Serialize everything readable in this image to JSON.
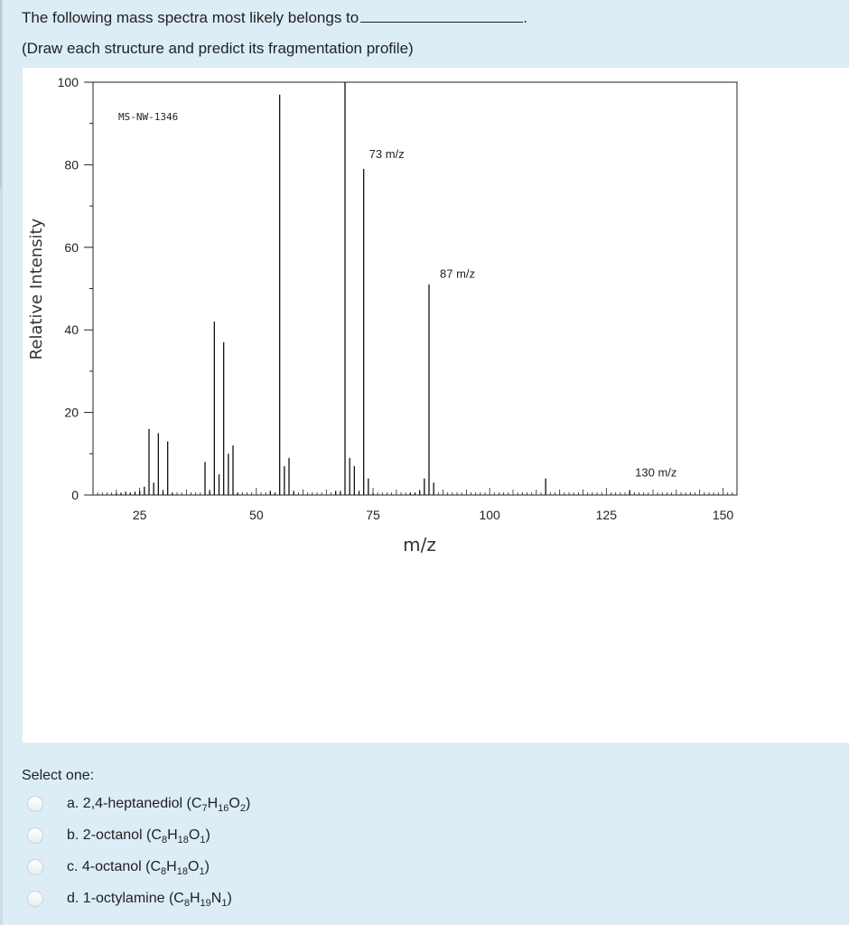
{
  "question": {
    "line1": "The following mass spectra most likely belongs to",
    "line1_end": ".",
    "line2": "(Draw each structure and predict its fragmentation profile)"
  },
  "chart_data": {
    "type": "bar",
    "title": "MS-NW-1346",
    "xlabel": "m/z",
    "ylabel": "Relative Intensity",
    "xlim": [
      15,
      153
    ],
    "ylim": [
      0,
      100
    ],
    "x_ticks": [
      25,
      50,
      75,
      100,
      125,
      150
    ],
    "y_ticks": [
      0,
      20,
      40,
      60,
      80,
      100
    ],
    "annotations": [
      {
        "x": 73,
        "y": 79,
        "label": "73 m/z"
      },
      {
        "x": 87,
        "y": 50,
        "label": "87 m/z"
      },
      {
        "x": 130,
        "y": 1,
        "label": "130 m/z"
      }
    ],
    "peaks": [
      {
        "x": 20,
        "y": 0.5
      },
      {
        "x": 21,
        "y": 0.5
      },
      {
        "x": 22,
        "y": 0.8
      },
      {
        "x": 23,
        "y": 0.5
      },
      {
        "x": 24,
        "y": 0.8
      },
      {
        "x": 25,
        "y": 1.0
      },
      {
        "x": 26,
        "y": 2.0
      },
      {
        "x": 27,
        "y": 16
      },
      {
        "x": 28,
        "y": 3
      },
      {
        "x": 29,
        "y": 15
      },
      {
        "x": 30,
        "y": 1
      },
      {
        "x": 31,
        "y": 13
      },
      {
        "x": 32,
        "y": 0.5
      },
      {
        "x": 39,
        "y": 8
      },
      {
        "x": 40,
        "y": 1
      },
      {
        "x": 41,
        "y": 42
      },
      {
        "x": 42,
        "y": 5
      },
      {
        "x": 43,
        "y": 37
      },
      {
        "x": 44,
        "y": 10
      },
      {
        "x": 45,
        "y": 12
      },
      {
        "x": 46,
        "y": 0.5
      },
      {
        "x": 53,
        "y": 1
      },
      {
        "x": 54,
        "y": 0.5
      },
      {
        "x": 55,
        "y": 97
      },
      {
        "x": 56,
        "y": 7
      },
      {
        "x": 57,
        "y": 9
      },
      {
        "x": 58,
        "y": 1
      },
      {
        "x": 67,
        "y": 1
      },
      {
        "x": 68,
        "y": 1
      },
      {
        "x": 69,
        "y": 100
      },
      {
        "x": 70,
        "y": 9
      },
      {
        "x": 71,
        "y": 7
      },
      {
        "x": 72,
        "y": 1
      },
      {
        "x": 73,
        "y": 79
      },
      {
        "x": 74,
        "y": 4
      },
      {
        "x": 75,
        "y": 0.5
      },
      {
        "x": 83,
        "y": 0.5
      },
      {
        "x": 84,
        "y": 0.5
      },
      {
        "x": 85,
        "y": 1
      },
      {
        "x": 86,
        "y": 4
      },
      {
        "x": 87,
        "y": 51
      },
      {
        "x": 88,
        "y": 3
      },
      {
        "x": 112,
        "y": 4
      },
      {
        "x": 130,
        "y": 1
      }
    ]
  },
  "select": {
    "label": "Select one:",
    "options": [
      {
        "prefix": "a. 2,4-heptanediol (",
        "formula": [
          [
            "C",
            "7"
          ],
          [
            "H",
            "16"
          ],
          [
            "O",
            "2"
          ]
        ],
        "suffix": ")"
      },
      {
        "prefix": "b. 2-octanol (",
        "formula": [
          [
            "C",
            "8"
          ],
          [
            "H",
            "18"
          ],
          [
            "O",
            "1"
          ]
        ],
        "suffix": ")"
      },
      {
        "prefix": "c. 4-octanol (",
        "formula": [
          [
            "C",
            "8"
          ],
          [
            "H",
            "18"
          ],
          [
            "O",
            "1"
          ]
        ],
        "suffix": ")"
      },
      {
        "prefix": "d. 1-octylamine (",
        "formula": [
          [
            "C",
            "8"
          ],
          [
            "H",
            "19"
          ],
          [
            "N",
            "1"
          ]
        ],
        "suffix": ")"
      }
    ]
  }
}
